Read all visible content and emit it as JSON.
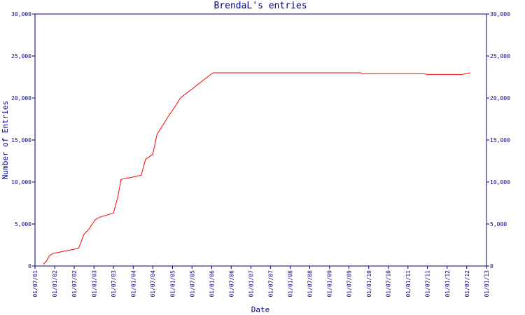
{
  "chart_data": {
    "type": "line",
    "title": "BrendaL's entries",
    "x_label": "Date",
    "y_label": "Number of Entries",
    "color": "#ff0000",
    "axis_color": "#000080",
    "x": [
      "15/09/01",
      "12/10/01",
      "10/11/01",
      "18/12/01",
      "10/08/02",
      "01/10/02",
      "10/11/02",
      "12/01/03",
      "20/02/03",
      "01/07/03",
      "10/08/03",
      "10/09/03",
      "15/03/04",
      "25/04/04",
      "01/07/04",
      "10/08/04",
      "15/10/04",
      "22/11/04",
      "25/01/05",
      "15/03/05",
      "12/01/06",
      "20/10/09",
      "01/11/09",
      "25/05/11",
      "01/07/11",
      "20/05/12",
      "05/08/12"
    ],
    "values": [
      200,
      500,
      1200,
      1500,
      2100,
      3800,
      4300,
      5500,
      5800,
      6300,
      8200,
      10300,
      10800,
      12700,
      13300,
      15700,
      17000,
      17800,
      19000,
      20000,
      23000,
      23000,
      22900,
      22900,
      22800,
      22800,
      23000
    ],
    "xlim": [
      "01/07/01",
      "01/01/13"
    ],
    "xticks": [
      "01/07/01",
      "01/01/02",
      "01/07/02",
      "01/01/03",
      "01/07/03",
      "01/01/04",
      "01/07/04",
      "01/01/05",
      "01/07/05",
      "01/01/06",
      "01/07/06",
      "01/01/07",
      "01/07/07",
      "01/01/08",
      "01/07/08",
      "01/01/09",
      "01/07/09",
      "01/01/10",
      "01/07/10",
      "01/01/11",
      "01/07/11",
      "01/01/12",
      "01/07/12",
      "01/01/13"
    ],
    "ylim": [
      0,
      30000
    ],
    "yticks": [
      0,
      {
        "value": 5000,
        "label": "5,000"
      },
      {
        "value": 10000,
        "label": "10,000"
      },
      {
        "value": 15000,
        "label": "15,000"
      },
      {
        "value": 20000,
        "label": "20,000"
      },
      {
        "value": 25000,
        "label": "25,000"
      },
      {
        "value": 30000,
        "label": "30,000"
      }
    ]
  }
}
